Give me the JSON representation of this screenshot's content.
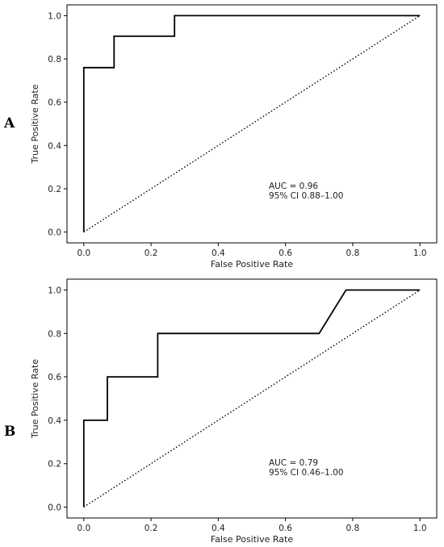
{
  "chart_data": [
    {
      "type": "line",
      "panel_label": "A",
      "xlabel": "False Positive Rate",
      "ylabel": "True Positive Rate",
      "xlim": [
        0,
        1
      ],
      "ylim": [
        0,
        1
      ],
      "x_ticks": [
        "0.0",
        "0.2",
        "0.4",
        "0.6",
        "0.8",
        "1.0"
      ],
      "y_ticks": [
        "0.0",
        "0.2",
        "0.4",
        "0.6",
        "0.8",
        "1.0"
      ],
      "grid": false,
      "series": [
        {
          "style": "solid",
          "x": [
            0,
            0,
            0.09,
            0.09,
            0.27,
            0.27,
            1.0
          ],
          "y": [
            0,
            0.76,
            0.76,
            0.905,
            0.905,
            1.0,
            1.0
          ]
        },
        {
          "style": "dotted",
          "x": [
            0,
            1
          ],
          "y": [
            0,
            1
          ]
        }
      ],
      "annotation": [
        "AUC = 0.96",
        "95% CI 0.88–1.00"
      ]
    },
    {
      "type": "line",
      "panel_label": "B",
      "xlabel": "False Positive Rate",
      "ylabel": "True Positive Rate",
      "xlim": [
        0,
        1
      ],
      "ylim": [
        0,
        1
      ],
      "x_ticks": [
        "0.0",
        "0.2",
        "0.4",
        "0.6",
        "0.8",
        "1.0"
      ],
      "y_ticks": [
        "0.0",
        "0.2",
        "0.4",
        "0.6",
        "0.8",
        "1.0"
      ],
      "grid": false,
      "series": [
        {
          "style": "solid",
          "x": [
            0,
            0,
            0.07,
            0.07,
            0.22,
            0.22,
            0.7,
            0.78,
            1.0
          ],
          "y": [
            0,
            0.4,
            0.4,
            0.6,
            0.6,
            0.8,
            0.8,
            1.0,
            1.0
          ]
        },
        {
          "style": "dotted",
          "x": [
            0,
            1
          ],
          "y": [
            0,
            1
          ]
        }
      ],
      "annotation": [
        "AUC = 0.79",
        "95% CI 0.46–1.00"
      ]
    }
  ]
}
